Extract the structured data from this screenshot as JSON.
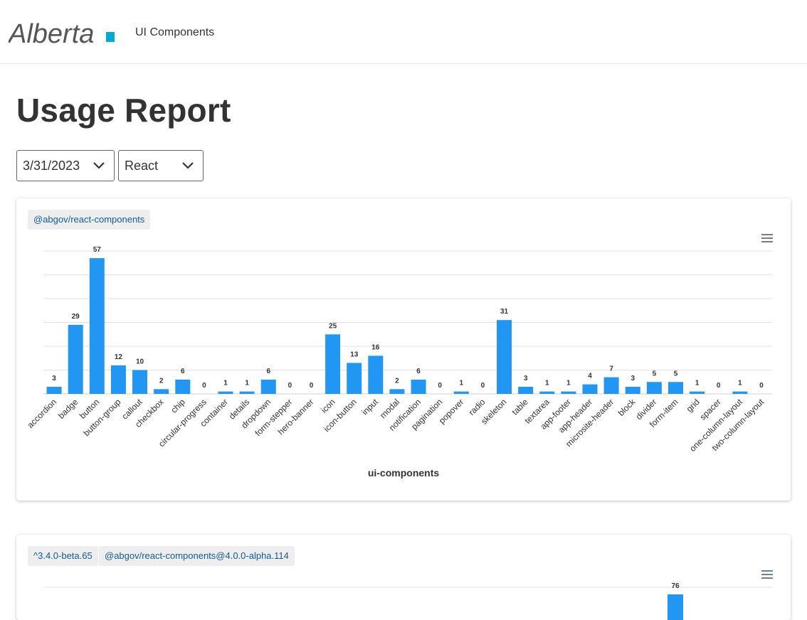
{
  "header": {
    "logo_text": "Alberta",
    "title": "UI Components"
  },
  "page": {
    "title": "Usage Report"
  },
  "filters": {
    "date": "3/31/2023",
    "framework": "React"
  },
  "colors": {
    "bar": "#2196f3",
    "tag_text": "#0f5c9e",
    "logo_accent": "#00aad2"
  },
  "chart1": {
    "tags": [
      "@abgov/react-components"
    ],
    "menu_icon": "hamburger-menu-icon"
  },
  "chart2": {
    "tags": [
      "^3.4.0-beta.65",
      "@abgov/react-components@4.0.0-alpha.114"
    ],
    "menu_icon": "hamburger-menu-icon",
    "visible_value": "76"
  },
  "chart_data": [
    {
      "type": "bar",
      "title": "@abgov/react-components",
      "xlabel": "ui-components",
      "ylabel": "",
      "ylim": [
        0,
        60
      ],
      "grid": true,
      "categories": [
        "accordion",
        "badge",
        "button",
        "button-group",
        "callout",
        "checkbox",
        "chip",
        "circular-progress",
        "container",
        "details",
        "dropdown",
        "form-stepper",
        "hero-banner",
        "icon",
        "icon-button",
        "input",
        "modal",
        "notification",
        "pagination",
        "popover",
        "radio",
        "skeleton",
        "table",
        "textarea",
        "app-footer",
        "app-header",
        "microsite-header",
        "block",
        "divider",
        "form-item",
        "grid",
        "spacer",
        "one-column-layout",
        "two-column-layout"
      ],
      "values": [
        3,
        29,
        57,
        12,
        10,
        2,
        6,
        0,
        1,
        1,
        6,
        0,
        0,
        25,
        13,
        16,
        2,
        6,
        0,
        1,
        0,
        31,
        3,
        1,
        1,
        4,
        7,
        3,
        5,
        5,
        1,
        0,
        1,
        0
      ]
    },
    {
      "type": "bar",
      "title": "^3.4.0-beta.65 @abgov/react-components@4.0.0-alpha.114",
      "visible_values": [
        76
      ]
    }
  ]
}
